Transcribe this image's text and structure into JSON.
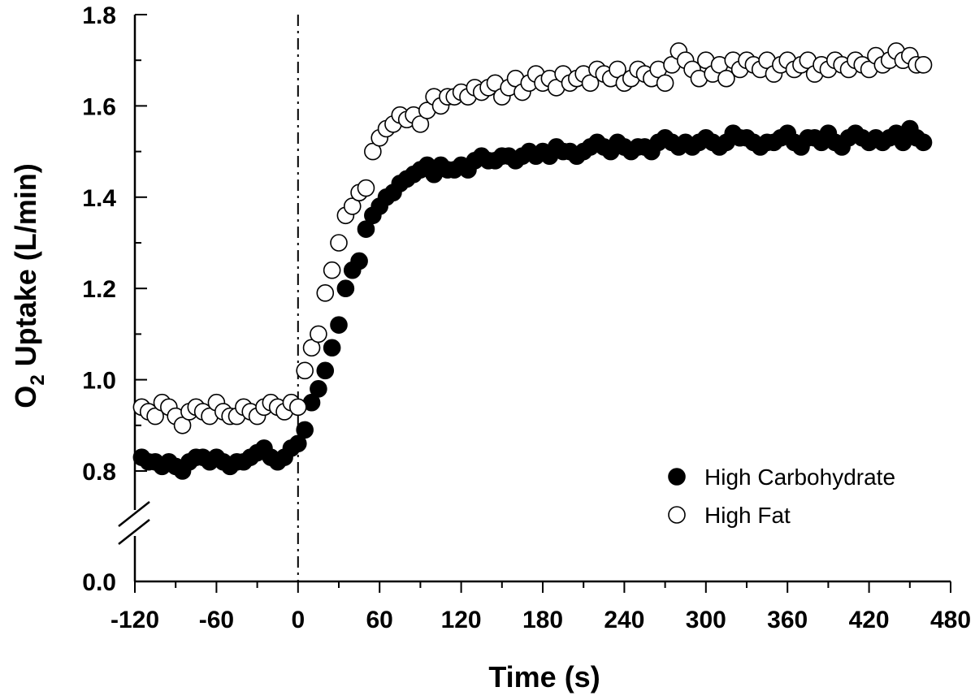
{
  "chart_data": {
    "type": "scatter",
    "xlabel": "Time (s)",
    "ylabel_main": "O",
    "ylabel_sub": "2",
    "ylabel_rest": " Uptake (L/min)",
    "x_ticks": [
      -120,
      -60,
      0,
      60,
      120,
      180,
      240,
      300,
      360,
      420,
      480
    ],
    "x_tick_labels": [
      "-120",
      "-60",
      "0",
      "60",
      "120",
      "180",
      "240",
      "300",
      "360",
      "420",
      "480"
    ],
    "y_ticks": [
      0.8,
      1.0,
      1.2,
      1.4,
      1.6,
      1.8
    ],
    "y_tick_labels": [
      "0.8",
      "1.0",
      "1.2",
      "1.4",
      "1.6",
      "1.8"
    ],
    "y_zero_label": "0.0",
    "xlim": [
      -120,
      480
    ],
    "ylim": [
      0.7,
      1.8
    ],
    "axis_break": true,
    "reference_line_x": 0,
    "grid": false,
    "legend_position": "bottom-right",
    "colors": {
      "high_carbohydrate": "#000000",
      "high_fat": "#ffffff",
      "axis": "#000000"
    },
    "series": [
      {
        "name": "High Carbohydrate",
        "marker": "filled-circle",
        "x": [
          -115,
          -110,
          -105,
          -100,
          -95,
          -90,
          -85,
          -80,
          -75,
          -70,
          -65,
          -60,
          -55,
          -50,
          -45,
          -40,
          -35,
          -30,
          -25,
          -20,
          -15,
          -10,
          -5,
          0,
          5,
          10,
          15,
          20,
          25,
          30,
          35,
          40,
          45,
          50,
          55,
          60,
          65,
          70,
          75,
          80,
          85,
          90,
          95,
          100,
          105,
          110,
          115,
          120,
          125,
          130,
          135,
          140,
          145,
          150,
          155,
          160,
          165,
          170,
          175,
          180,
          185,
          190,
          195,
          200,
          205,
          210,
          215,
          220,
          225,
          230,
          235,
          240,
          245,
          250,
          255,
          260,
          265,
          270,
          275,
          280,
          285,
          290,
          295,
          300,
          305,
          310,
          315,
          320,
          325,
          330,
          335,
          340,
          345,
          350,
          355,
          360,
          365,
          370,
          375,
          380,
          385,
          390,
          395,
          400,
          405,
          410,
          415,
          420,
          425,
          430,
          435,
          440,
          445,
          450,
          455,
          460
        ],
        "y": [
          0.83,
          0.82,
          0.82,
          0.81,
          0.82,
          0.81,
          0.8,
          0.82,
          0.83,
          0.83,
          0.82,
          0.83,
          0.82,
          0.81,
          0.82,
          0.82,
          0.83,
          0.84,
          0.85,
          0.83,
          0.82,
          0.83,
          0.85,
          0.86,
          0.89,
          0.95,
          0.98,
          1.02,
          1.07,
          1.12,
          1.2,
          1.24,
          1.26,
          1.33,
          1.36,
          1.38,
          1.4,
          1.41,
          1.43,
          1.44,
          1.45,
          1.46,
          1.47,
          1.45,
          1.47,
          1.46,
          1.46,
          1.47,
          1.46,
          1.48,
          1.49,
          1.48,
          1.48,
          1.49,
          1.49,
          1.48,
          1.49,
          1.5,
          1.49,
          1.5,
          1.49,
          1.51,
          1.5,
          1.5,
          1.49,
          1.5,
          1.51,
          1.52,
          1.51,
          1.5,
          1.52,
          1.51,
          1.5,
          1.51,
          1.51,
          1.5,
          1.52,
          1.53,
          1.52,
          1.51,
          1.52,
          1.51,
          1.52,
          1.53,
          1.52,
          1.51,
          1.52,
          1.54,
          1.53,
          1.53,
          1.52,
          1.51,
          1.52,
          1.52,
          1.53,
          1.54,
          1.52,
          1.51,
          1.53,
          1.53,
          1.52,
          1.54,
          1.52,
          1.51,
          1.53,
          1.54,
          1.53,
          1.52,
          1.53,
          1.52,
          1.53,
          1.54,
          1.52,
          1.55,
          1.53,
          1.52
        ]
      },
      {
        "name": "High Fat",
        "marker": "open-circle",
        "x": [
          -115,
          -110,
          -105,
          -100,
          -95,
          -90,
          -85,
          -80,
          -75,
          -70,
          -65,
          -60,
          -55,
          -50,
          -45,
          -40,
          -35,
          -30,
          -25,
          -20,
          -15,
          -10,
          -5,
          0,
          5,
          10,
          15,
          20,
          25,
          30,
          35,
          40,
          45,
          50,
          55,
          60,
          65,
          70,
          75,
          80,
          85,
          90,
          95,
          100,
          105,
          110,
          115,
          120,
          125,
          130,
          135,
          140,
          145,
          150,
          155,
          160,
          165,
          170,
          175,
          180,
          185,
          190,
          195,
          200,
          205,
          210,
          215,
          220,
          225,
          230,
          235,
          240,
          245,
          250,
          255,
          260,
          265,
          270,
          275,
          280,
          285,
          290,
          295,
          300,
          305,
          310,
          315,
          320,
          325,
          330,
          335,
          340,
          345,
          350,
          355,
          360,
          365,
          370,
          375,
          380,
          385,
          390,
          395,
          400,
          405,
          410,
          415,
          420,
          425,
          430,
          435,
          440,
          445,
          450,
          455,
          460
        ],
        "y": [
          0.94,
          0.93,
          0.92,
          0.95,
          0.94,
          0.92,
          0.9,
          0.93,
          0.94,
          0.93,
          0.92,
          0.95,
          0.93,
          0.92,
          0.92,
          0.94,
          0.93,
          0.92,
          0.94,
          0.95,
          0.94,
          0.93,
          0.95,
          0.94,
          1.02,
          1.07,
          1.1,
          1.19,
          1.24,
          1.3,
          1.36,
          1.38,
          1.41,
          1.42,
          1.5,
          1.53,
          1.55,
          1.56,
          1.58,
          1.57,
          1.58,
          1.56,
          1.59,
          1.62,
          1.6,
          1.62,
          1.62,
          1.63,
          1.62,
          1.64,
          1.63,
          1.64,
          1.65,
          1.62,
          1.64,
          1.66,
          1.63,
          1.65,
          1.67,
          1.65,
          1.66,
          1.64,
          1.67,
          1.65,
          1.66,
          1.67,
          1.65,
          1.68,
          1.67,
          1.66,
          1.68,
          1.65,
          1.66,
          1.68,
          1.67,
          1.66,
          1.68,
          1.65,
          1.69,
          1.72,
          1.7,
          1.68,
          1.66,
          1.7,
          1.67,
          1.69,
          1.66,
          1.7,
          1.68,
          1.7,
          1.69,
          1.68,
          1.7,
          1.67,
          1.69,
          1.7,
          1.68,
          1.69,
          1.7,
          1.67,
          1.69,
          1.68,
          1.7,
          1.69,
          1.68,
          1.7,
          1.69,
          1.68,
          1.71,
          1.69,
          1.7,
          1.72,
          1.7,
          1.71,
          1.69,
          1.69
        ]
      }
    ]
  }
}
